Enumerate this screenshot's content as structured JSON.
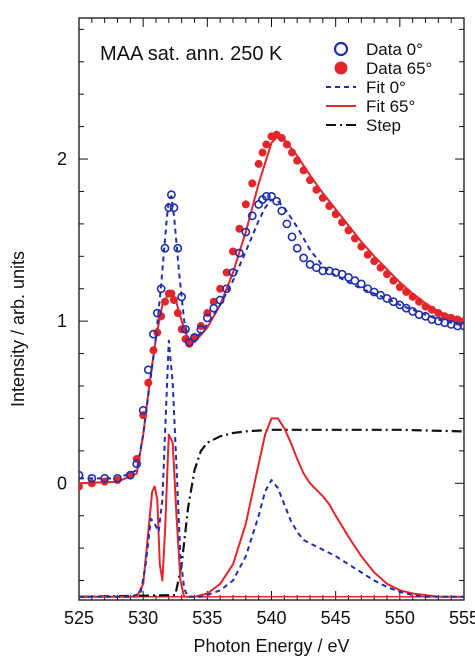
{
  "chart_data": {
    "type": "line",
    "title": "MAA sat. ann. 250 K",
    "xlabel": "Photon Energy / eV",
    "ylabel": "Intensity / arb. units",
    "xlim": [
      525,
      555
    ],
    "ylim": [
      -0.72,
      2.87
    ],
    "x_ticks": [
      525,
      530,
      535,
      540,
      545,
      550,
      555
    ],
    "y_ticks": [
      0,
      1,
      2
    ],
    "grid": false,
    "legend_position": "top-right",
    "colors": {
      "blue": "#1f2fae",
      "red": "#e3262b",
      "black": "#111111"
    },
    "legend": [
      {
        "label": "Data 0°",
        "marker": "open-circle",
        "color": "#1f2fae"
      },
      {
        "label": "Data 65°",
        "marker": "filled-circle",
        "color": "#e3262b"
      },
      {
        "label": "Fit 0°",
        "line": "dashed",
        "color": "#1f2fae"
      },
      {
        "label": "Fit 65°",
        "line": "solid",
        "color": "#e3262b"
      },
      {
        "label": "Step",
        "line": "dash-dot",
        "color": "#111111"
      }
    ],
    "series": [
      {
        "name": "Data 0°",
        "kind": "markers-open",
        "color": "#1f2fae",
        "x": [
          525,
          526,
          527,
          528,
          529,
          529.5,
          530,
          530.4,
          530.8,
          531.1,
          531.4,
          531.7,
          532,
          532.2,
          532.4,
          532.7,
          533,
          533.3,
          533.6,
          534,
          534.5,
          535,
          535.5,
          536,
          536.5,
          537,
          537.5,
          538,
          538.5,
          539,
          539.3,
          539.6,
          540,
          540.4,
          540.8,
          541.2,
          541.6,
          542,
          542.5,
          543,
          543.5,
          544,
          544.5,
          545,
          545.5,
          546,
          546.5,
          547,
          547.5,
          548,
          548.5,
          549,
          549.5,
          550,
          550.5,
          551,
          551.5,
          552,
          552.5,
          553,
          553.5,
          554,
          554.5,
          555
        ],
        "y": [
          0.05,
          0.03,
          0.03,
          0.03,
          0.05,
          0.12,
          0.45,
          0.7,
          0.92,
          1.05,
          1.2,
          1.45,
          1.7,
          1.78,
          1.7,
          1.45,
          1.15,
          0.95,
          0.87,
          0.9,
          0.95,
          1.02,
          1.08,
          1.13,
          1.2,
          1.3,
          1.42,
          1.55,
          1.65,
          1.72,
          1.75,
          1.77,
          1.77,
          1.74,
          1.68,
          1.6,
          1.52,
          1.45,
          1.39,
          1.35,
          1.33,
          1.31,
          1.31,
          1.3,
          1.29,
          1.27,
          1.25,
          1.23,
          1.2,
          1.18,
          1.16,
          1.14,
          1.12,
          1.1,
          1.08,
          1.06,
          1.04,
          1.03,
          1.01,
          1,
          0.99,
          0.98,
          0.97,
          0.97
        ]
      },
      {
        "name": "Data 65°",
        "kind": "markers-filled",
        "color": "#e3262b",
        "x": [
          525,
          526,
          527,
          528,
          529,
          529.5,
          530,
          530.4,
          530.8,
          531.1,
          531.4,
          531.7,
          532,
          532.2,
          532.4,
          532.7,
          533,
          533.3,
          533.6,
          534,
          534.5,
          535,
          535.5,
          536,
          536.5,
          537,
          537.5,
          538,
          538.5,
          539,
          539.3,
          539.6,
          540,
          540.4,
          540.8,
          541.2,
          541.6,
          542,
          542.5,
          543,
          543.5,
          544,
          544.5,
          545,
          545.5,
          546,
          546.5,
          547,
          547.5,
          548,
          548.5,
          549,
          549.5,
          550,
          550.5,
          551,
          551.5,
          552,
          552.5,
          553,
          553.5,
          554,
          554.5,
          555
        ],
        "y": [
          -0.02,
          0,
          0.01,
          0.02,
          0.05,
          0.15,
          0.42,
          0.62,
          0.82,
          0.93,
          1.03,
          1.12,
          1.17,
          1.17,
          1.13,
          1.05,
          0.95,
          0.89,
          0.86,
          0.9,
          0.97,
          1.05,
          1.12,
          1.2,
          1.3,
          1.43,
          1.57,
          1.72,
          1.85,
          1.97,
          2.04,
          2.09,
          2.14,
          2.15,
          2.13,
          2.09,
          2.04,
          1.99,
          1.93,
          1.87,
          1.81,
          1.76,
          1.71,
          1.66,
          1.61,
          1.56,
          1.51,
          1.46,
          1.41,
          1.37,
          1.33,
          1.29,
          1.25,
          1.21,
          1.18,
          1.15,
          1.12,
          1.09,
          1.07,
          1.05,
          1.03,
          1.02,
          1.01,
          1
        ]
      },
      {
        "name": "Fit 0°",
        "kind": "line-dashed",
        "color": "#1f2fae",
        "x": [
          525,
          528,
          529.5,
          530,
          530.5,
          531,
          531.4,
          531.8,
          532,
          532.2,
          532.4,
          532.8,
          533.2,
          533.6,
          534,
          535,
          536,
          537,
          538,
          539,
          539.5,
          540,
          540.5,
          541,
          542,
          543,
          544,
          545,
          546,
          547,
          548,
          549,
          550,
          551,
          552,
          553,
          554,
          555
        ],
        "y": [
          0.03,
          0.03,
          0.08,
          0.3,
          0.6,
          0.9,
          1.22,
          1.6,
          1.75,
          1.77,
          1.65,
          1.3,
          1.0,
          0.87,
          0.88,
          0.98,
          1.1,
          1.25,
          1.43,
          1.62,
          1.7,
          1.75,
          1.74,
          1.7,
          1.58,
          1.44,
          1.34,
          1.28,
          1.24,
          1.2,
          1.17,
          1.14,
          1.1,
          1.07,
          1.04,
          1.01,
          0.99,
          0.97
        ]
      },
      {
        "name": "Fit 65°",
        "kind": "line-solid",
        "color": "#e3262b",
        "x": [
          525,
          528,
          529.5,
          530,
          530.5,
          531,
          531.5,
          532,
          532.5,
          533,
          533.5,
          534,
          535,
          536,
          537,
          538,
          539,
          540,
          540.5,
          541,
          542,
          543,
          544,
          545,
          546,
          547,
          548,
          549,
          550,
          551,
          552,
          553,
          554,
          555
        ],
        "y": [
          0,
          0.01,
          0.06,
          0.3,
          0.62,
          0.9,
          1.1,
          1.17,
          1.14,
          1.0,
          0.89,
          0.87,
          0.96,
          1.1,
          1.3,
          1.55,
          1.85,
          2.1,
          2.14,
          2.12,
          2.02,
          1.9,
          1.79,
          1.69,
          1.59,
          1.49,
          1.4,
          1.32,
          1.24,
          1.17,
          1.11,
          1.06,
          1.03,
          1.01
        ]
      },
      {
        "name": "Fit 0° components",
        "kind": "line-dashed",
        "color": "#1f2fae",
        "x": [
          525,
          529,
          529.8,
          530.2,
          530.6,
          530.9,
          531.2,
          531.5,
          531.7,
          532,
          532.3,
          532.6,
          532.9,
          533.2,
          533.5,
          534,
          534.5,
          535,
          536,
          537,
          538,
          539,
          539.5,
          540,
          540.5,
          541,
          541.5,
          542,
          542.5,
          543,
          543.5,
          544,
          545,
          546,
          547,
          548,
          549,
          550,
          551,
          552,
          553,
          554,
          555
        ],
        "y": [
          -0.7,
          -0.7,
          -0.68,
          -0.5,
          -0.22,
          -0.25,
          -0.3,
          -0.1,
          0.3,
          0.88,
          0.62,
          0.1,
          -0.45,
          -0.65,
          -0.7,
          -0.7,
          -0.7,
          -0.69,
          -0.66,
          -0.6,
          -0.45,
          -0.2,
          -0.05,
          0.02,
          -0.03,
          -0.13,
          -0.23,
          -0.3,
          -0.35,
          -0.37,
          -0.39,
          -0.41,
          -0.45,
          -0.5,
          -0.55,
          -0.6,
          -0.64,
          -0.67,
          -0.69,
          -0.7,
          -0.7,
          -0.7,
          -0.7
        ]
      },
      {
        "name": "Fit 65° components",
        "kind": "line-solid",
        "color": "#e3262b",
        "x": [
          525,
          529.5,
          530,
          530.4,
          530.7,
          530.9,
          531.1,
          531.3,
          531.5,
          531.7,
          532,
          532.3,
          532.6,
          532.9,
          533.2,
          533.5,
          534,
          535,
          536,
          537,
          538,
          539,
          539.5,
          540,
          540.5,
          541,
          541.5,
          542,
          542.5,
          543,
          543.5,
          544,
          544.5,
          545,
          546,
          547,
          548,
          549,
          550,
          551,
          552,
          553,
          554,
          555
        ],
        "y": [
          -0.7,
          -0.7,
          -0.62,
          -0.3,
          -0.05,
          -0.02,
          -0.1,
          -0.5,
          -0.6,
          -0.3,
          0.3,
          0.25,
          -0.2,
          -0.6,
          -0.7,
          -0.7,
          -0.7,
          -0.68,
          -0.62,
          -0.5,
          -0.25,
          0.12,
          0.3,
          0.4,
          0.4,
          0.34,
          0.25,
          0.15,
          0.06,
          0.0,
          -0.04,
          -0.08,
          -0.13,
          -0.2,
          -0.33,
          -0.45,
          -0.55,
          -0.62,
          -0.66,
          -0.68,
          -0.69,
          -0.7,
          -0.7,
          -0.7
        ]
      },
      {
        "name": "Step",
        "kind": "line-dashdot",
        "color": "#111111",
        "x": [
          525,
          532.5,
          533,
          533.5,
          534,
          534.5,
          535,
          536,
          537,
          538,
          540,
          545,
          550,
          555
        ],
        "y": [
          -0.7,
          -0.69,
          -0.5,
          -0.15,
          0.08,
          0.2,
          0.25,
          0.29,
          0.31,
          0.32,
          0.33,
          0.33,
          0.33,
          0.32
        ]
      },
      {
        "name": "Baseline",
        "kind": "line-solid-thin",
        "color": "#e3262b",
        "x": [
          525,
          555
        ],
        "y": [
          -0.7,
          -0.7
        ]
      }
    ]
  }
}
